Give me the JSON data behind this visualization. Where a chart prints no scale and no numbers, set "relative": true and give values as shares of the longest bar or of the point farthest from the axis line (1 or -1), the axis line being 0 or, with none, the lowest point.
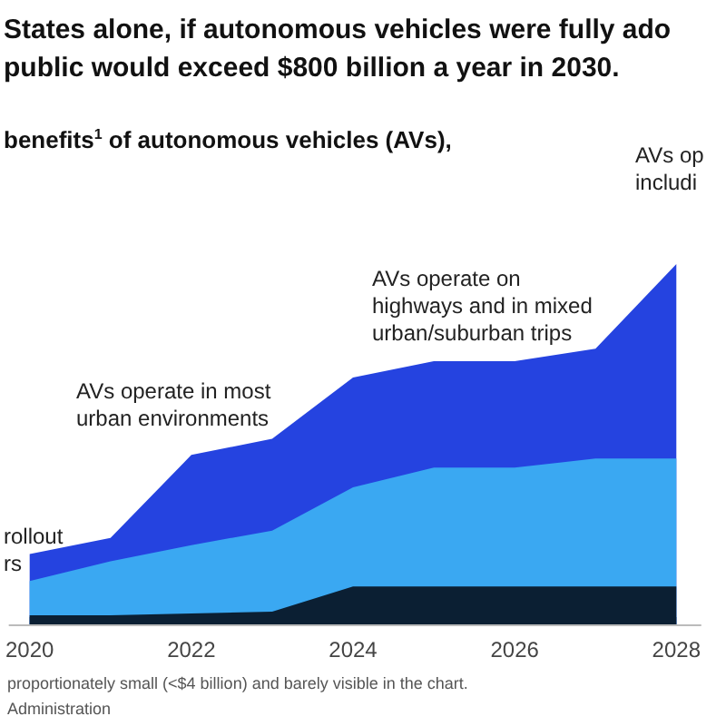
{
  "chart_data": {
    "type": "area",
    "title": "States alone, if autonomous vehicles were fully ado\npublic would exceed $800 billion a year in 2030.",
    "subtitle": "benefits$^{1}$ of autonomous vehicles (AVs),",
    "annotations": [
      "rollout\nrs",
      "AVs operate in most\nurban environments",
      "AVs operate on\nhighways and in mixed\nurban/suburban trips",
      "AVs op\nincludi",
      "proportionately small (<$4 billion) and barely visible in the chart.",
      "Administration"
    ],
    "x": [
      2020,
      2021,
      2022,
      2023,
      2024,
      2025,
      2026,
      2027,
      2028
    ],
    "series": [
      {
        "color": "#0b1f33",
        "values": [
          0.025,
          0.025,
          0.03,
          0.035,
          0.105,
          0.105,
          0.105,
          0.105,
          0.105
        ]
      },
      {
        "color": "#3aa8f2",
        "values": [
          0.095,
          0.15,
          0.19,
          0.225,
          0.275,
          0.33,
          0.33,
          0.355,
          0.355
        ]
      },
      {
        "color": "#2543e0",
        "values": [
          0.075,
          0.065,
          0.25,
          0.255,
          0.305,
          0.295,
          0.295,
          0.305,
          0.54
        ]
      }
    ],
    "relative": true,
    "stacked": true,
    "xlim": [
      2019.75,
      2028.3
    ],
    "xticks": [
      2020,
      2022,
      2024,
      2026,
      2028
    ],
    "tick_labels": "x"
  }
}
